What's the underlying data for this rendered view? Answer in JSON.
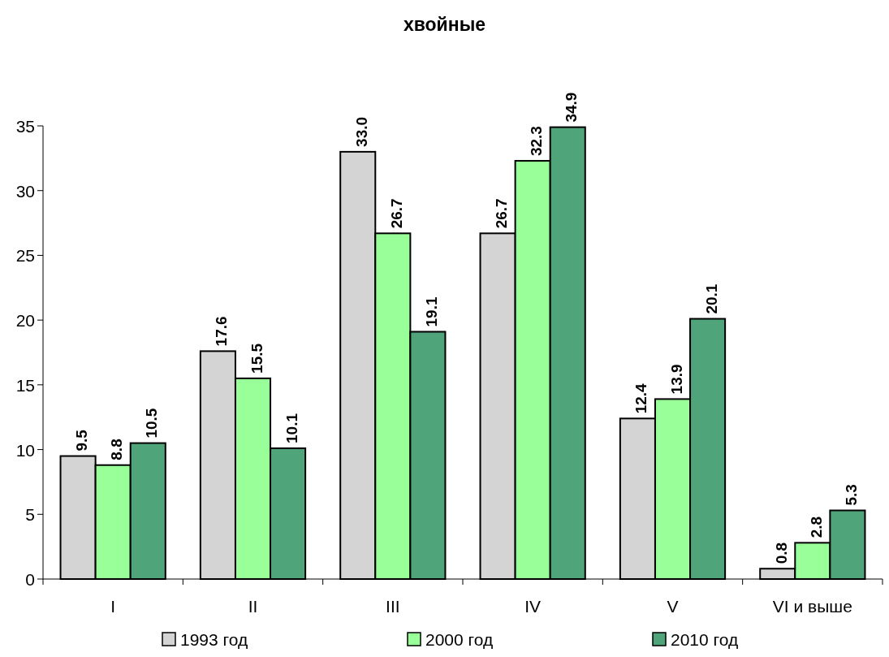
{
  "chart_data": {
    "type": "bar",
    "title": "хвойные",
    "categories": [
      "I",
      "II",
      "III",
      "IV",
      "V",
      "VI и выше"
    ],
    "series": [
      {
        "name": "1993 год",
        "color": "#d4d4d4",
        "values": [
          9.5,
          17.6,
          33.0,
          26.7,
          12.4,
          0.8
        ],
        "value_labels": [
          "9.5",
          "17.6",
          "33.0",
          "26.7",
          "12.4",
          "0.8"
        ]
      },
      {
        "name": "2000 год",
        "color": "#99ff99",
        "values": [
          8.8,
          15.5,
          26.7,
          32.3,
          13.9,
          2.8
        ],
        "value_labels": [
          "8.8",
          "15.5",
          "26.7",
          "32.3",
          "13.9",
          "2.8"
        ]
      },
      {
        "name": "2010 год",
        "color": "#4fa47a",
        "values": [
          10.5,
          10.1,
          19.1,
          34.9,
          20.1,
          5.3
        ],
        "value_labels": [
          "10.5",
          "10.1",
          "19.1",
          "34.9",
          "20.1",
          "5.3"
        ]
      }
    ],
    "ylim": [
      0,
      35
    ],
    "yticks": [
      0,
      5,
      10,
      15,
      20,
      25,
      30,
      35
    ],
    "legend": "bottom"
  }
}
